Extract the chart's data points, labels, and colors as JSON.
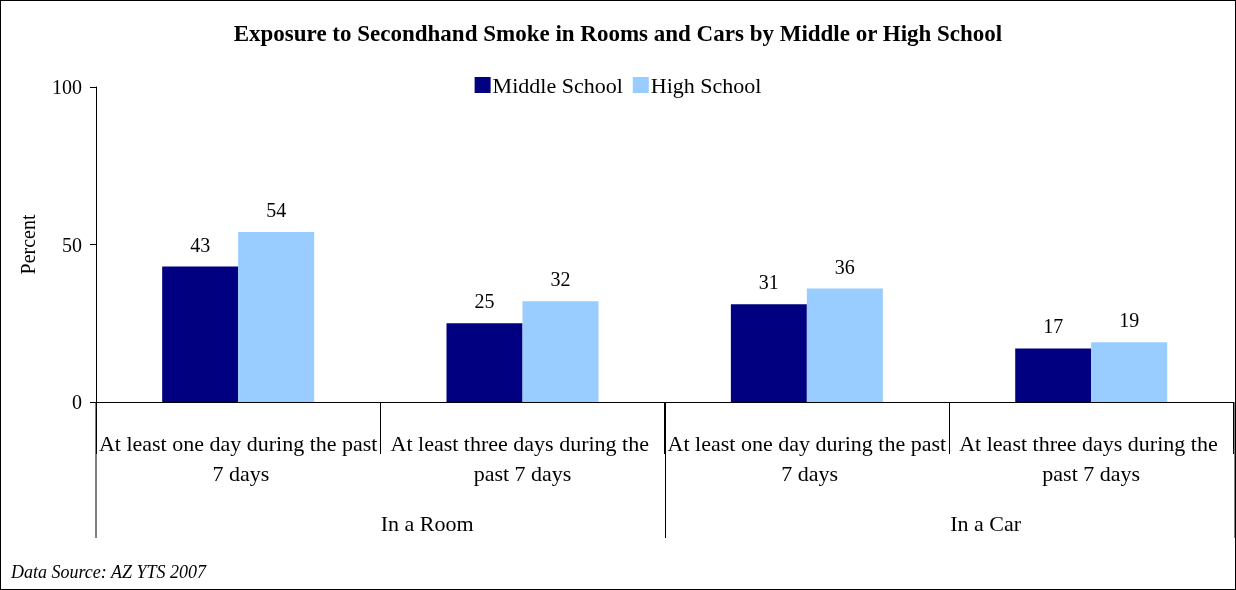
{
  "chart_data": {
    "type": "bar",
    "title": "Exposure to Secondhand Smoke in Rooms and Cars by Middle or High School",
    "ylabel": "Percent",
    "categories": [
      "At least one day during the past 7 days",
      "At least three days during the past 7 days",
      "At least one day during the past 7 days",
      "At least three days during the past 7 days"
    ],
    "series": [
      {
        "name": "Middle School",
        "color": "#000080",
        "values": [
          43,
          25,
          31,
          17
        ]
      },
      {
        "name": "High School",
        "color": "#99ccff",
        "values": [
          54,
          32,
          36,
          19
        ]
      }
    ],
    "ylim": [
      0,
      100
    ],
    "yticks": [
      0,
      50,
      100
    ],
    "grid": false,
    "legend": "top",
    "data_labels": true,
    "annotations": [
      "In a Room",
      "In a Car",
      "Data Source: AZ YTS 2007"
    ]
  }
}
